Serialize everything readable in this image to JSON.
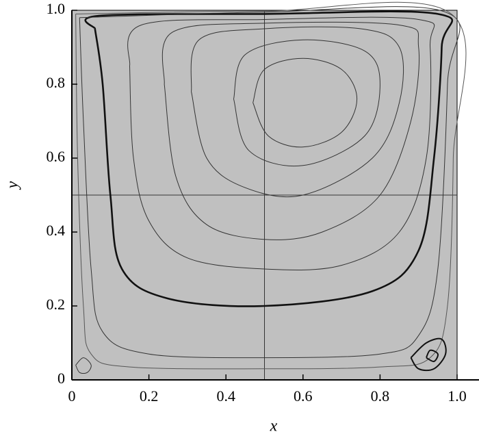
{
  "chart_data": {
    "type": "streamline",
    "x_label": "x",
    "y_label": "y",
    "xlim": [
      0,
      1
    ],
    "ylim": [
      0,
      1
    ],
    "xticks": [
      0,
      0.2,
      0.4,
      0.6,
      0.8,
      {
        "value": 1,
        "label": "1.0"
      }
    ],
    "yticks": [
      0,
      0.2,
      0.4,
      0.6,
      0.8,
      {
        "value": 1,
        "label": "1.0"
      }
    ],
    "reference_lines": {
      "x": 0.5,
      "y": 0.5
    },
    "background": "#c0c0c0",
    "series": [
      {
        "color": "#333333",
        "x": [
          0.47,
          0.5,
          0.6,
          0.7,
          0.74,
          0.7,
          0.6,
          0.51,
          0.47
        ],
        "values": [
          0.75,
          0.84,
          0.87,
          0.84,
          0.76,
          0.67,
          0.63,
          0.66,
          0.75
        ]
      },
      {
        "color": "#333333",
        "x": [
          0.42,
          0.45,
          0.6,
          0.76,
          0.8,
          0.76,
          0.6,
          0.46,
          0.42
        ],
        "values": [
          0.76,
          0.88,
          0.92,
          0.89,
          0.8,
          0.66,
          0.58,
          0.62,
          0.76
        ]
      },
      {
        "color": "#333333",
        "x": [
          0.31,
          0.33,
          0.5,
          0.75,
          0.85,
          0.85,
          0.78,
          0.6,
          0.45,
          0.35,
          0.31
        ],
        "values": [
          0.78,
          0.92,
          0.95,
          0.95,
          0.9,
          0.75,
          0.6,
          0.5,
          0.52,
          0.6,
          0.78
        ]
      },
      {
        "color": "#333333",
        "x": [
          0.24,
          0.26,
          0.5,
          0.85,
          0.9,
          0.88,
          0.8,
          0.65,
          0.5,
          0.35,
          0.27,
          0.24
        ],
        "values": [
          0.8,
          0.94,
          0.965,
          0.96,
          0.9,
          0.7,
          0.5,
          0.4,
          0.38,
          0.42,
          0.55,
          0.8
        ]
      },
      {
        "color": "#333333",
        "x": [
          0.15,
          0.18,
          0.5,
          0.9,
          0.93,
          0.92,
          0.85,
          0.7,
          0.5,
          0.3,
          0.2,
          0.16,
          0.15
        ],
        "values": [
          0.85,
          0.96,
          0.975,
          0.975,
          0.9,
          0.6,
          0.4,
          0.31,
          0.3,
          0.33,
          0.43,
          0.6,
          0.85
        ]
      },
      {
        "color": "#111111",
        "x": [
          0.06,
          0.07,
          0.5,
          0.95,
          0.96,
          0.94,
          0.9,
          0.78,
          0.5,
          0.25,
          0.13,
          0.1,
          0.08,
          0.06
        ],
        "values": [
          0.95,
          0.985,
          0.99,
          0.99,
          0.9,
          0.6,
          0.35,
          0.24,
          0.2,
          0.22,
          0.3,
          0.5,
          0.8,
          0.95
        ]
      },
      {
        "color": "#333333",
        "x": [
          0.02,
          0.5,
          0.97,
          0.975,
          0.95,
          0.9,
          0.8,
          0.5,
          0.2,
          0.08,
          0.05,
          0.03,
          0.02
        ],
        "values": [
          0.98,
          0.995,
          0.995,
          0.8,
          0.3,
          0.12,
          0.07,
          0.06,
          0.07,
          0.13,
          0.3,
          0.7,
          0.98
        ]
      },
      {
        "color": "#555555",
        "x": [
          0.01,
          0.5,
          0.985,
          0.99,
          0.975,
          0.93,
          0.8,
          0.5,
          0.15,
          0.05,
          0.03,
          0.015,
          0.01
        ],
        "values": [
          0.99,
          0.998,
          0.99,
          0.6,
          0.2,
          0.06,
          0.035,
          0.03,
          0.035,
          0.07,
          0.2,
          0.6,
          0.99
        ]
      },
      {
        "color": "#333333",
        "x": [
          0.01,
          0.03,
          0.05,
          0.04,
          0.02,
          0.01
        ],
        "values": [
          0.04,
          0.06,
          0.04,
          0.02,
          0.02,
          0.04
        ]
      },
      {
        "color": "#111111",
        "x": [
          0.88,
          0.92,
          0.96,
          0.97,
          0.94,
          0.9,
          0.88
        ],
        "values": [
          0.06,
          0.1,
          0.11,
          0.07,
          0.03,
          0.03,
          0.06
        ]
      },
      {
        "color": "#111111",
        "x": [
          0.92,
          0.93,
          0.95,
          0.94,
          0.92
        ],
        "values": [
          0.06,
          0.08,
          0.07,
          0.05,
          0.06
        ]
      }
    ]
  }
}
